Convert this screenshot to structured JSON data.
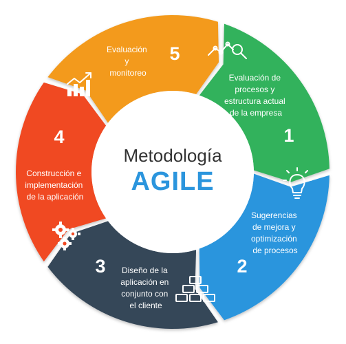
{
  "center": {
    "title": "Metodología",
    "subtitle": "AGILE"
  },
  "segments": [
    {
      "number": "1",
      "lines": [
        "Evaluación de",
        "procesos y",
        "estructura actual",
        "de la empresa"
      ],
      "color": "#31b25c",
      "icon": "analytics-magnifier-icon"
    },
    {
      "number": "2",
      "lines": [
        "Sugerencias",
        "de mejora y",
        "optimización",
        "de procesos"
      ],
      "color": "#2b95dd",
      "icon": "lightbulb-icon"
    },
    {
      "number": "3",
      "lines": [
        "Diseño de la",
        "aplicación en",
        "conjunto con",
        "el cliente"
      ],
      "color": "#344659",
      "icon": "bricks-icon"
    },
    {
      "number": "4",
      "lines": [
        "Construcción e",
        "implementación",
        "de la aplicación"
      ],
      "color": "#f04a24",
      "icon": "gears-icon"
    },
    {
      "number": "5",
      "lines": [
        "Evaluación",
        "y",
        "monitoreo"
      ],
      "color": "#f39a1c",
      "icon": "bar-chart-growth-icon"
    }
  ]
}
